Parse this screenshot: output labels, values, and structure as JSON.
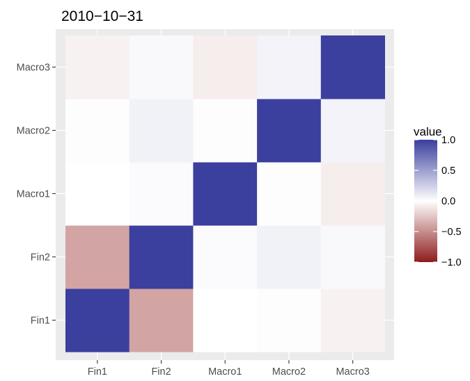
{
  "chart_data": {
    "type": "heatmap",
    "title": "2010−10−31",
    "x_categories": [
      "Fin1",
      "Fin2",
      "Macro1",
      "Macro2",
      "Macro3"
    ],
    "y_categories": [
      "Fin1",
      "Fin2",
      "Macro1",
      "Macro2",
      "Macro3"
    ],
    "values": [
      [
        1.0,
        -0.4,
        0.0,
        0.01,
        -0.06
      ],
      [
        -0.4,
        1.0,
        0.02,
        0.07,
        0.03
      ],
      [
        0.0,
        0.02,
        1.0,
        0.01,
        -0.08
      ],
      [
        0.01,
        0.07,
        0.01,
        1.0,
        0.06
      ],
      [
        -0.06,
        0.03,
        -0.08,
        0.06,
        1.0
      ]
    ],
    "legend": {
      "title": "value",
      "ticks": [
        1.0,
        0.5,
        0.0,
        -0.5,
        -1.0
      ],
      "tick_labels": [
        "1.0",
        "0.5",
        "0.0",
        "−0.5",
        "−1.0"
      ],
      "position": "right"
    },
    "colors": {
      "high": "#3b3f9d",
      "mid": "#ffffff",
      "low": "#8e1c1c",
      "panel_background": "#ebebeb",
      "gridline": "#ffffff",
      "axis_text": "#4d4d4d",
      "title": "#000000"
    },
    "value_range": [
      -1,
      1
    ],
    "grid": true
  }
}
